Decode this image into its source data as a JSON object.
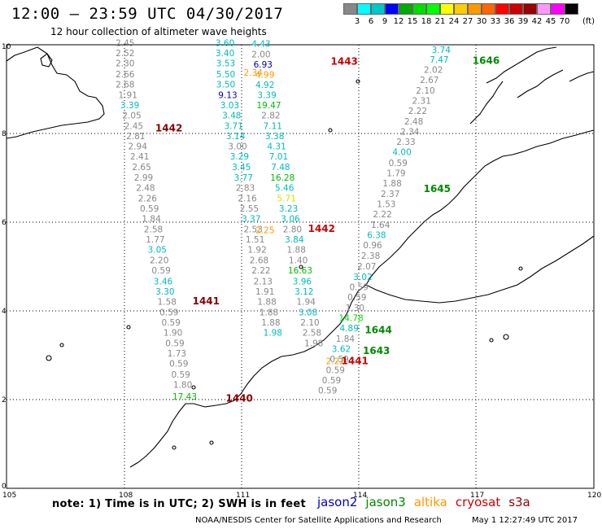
{
  "title": "12:00 — 23:59 UTC 04/30/2017",
  "subtitle": "12 hour collection of altimeter wave heights",
  "colorbar": {
    "unit": "(ft)",
    "labels": [
      "3",
      "6",
      "9",
      "12",
      "15",
      "18",
      "21",
      "24",
      "27",
      "30",
      "33",
      "36",
      "39",
      "42",
      "45",
      "70"
    ],
    "colors": [
      "#888888",
      "#00ffff",
      "#00c8c8",
      "#0000ff",
      "#00aa00",
      "#00dd00",
      "#00ff00",
      "#ffff00",
      "#ffcc00",
      "#ff9900",
      "#ff6600",
      "#ff0000",
      "#cc0000",
      "#990000",
      "#ff99ff",
      "#ff00ff",
      "#000000"
    ]
  },
  "axes": {
    "x_ticks": [
      "105",
      "108",
      "111",
      "114",
      "117",
      "120"
    ],
    "y_ticks": [
      "0",
      "2",
      "4",
      "6",
      "8",
      "10"
    ],
    "lon_range": [
      105,
      120
    ],
    "lat_range": [
      0,
      10
    ]
  },
  "note": "note:  1) Time is in UTC;  2) SWH is in feet",
  "satellites": [
    {
      "name": "jason2",
      "color": "#0000cc"
    },
    {
      "name": "jason3",
      "color": "#008800"
    },
    {
      "name": "altika",
      "color": "#ff9900"
    },
    {
      "name": "cryosat",
      "color": "#cc0000"
    },
    {
      "name": "s3a",
      "color": "#880000"
    }
  ],
  "credit": "NOAA/NESDIS Center for Satellite Applications and Research",
  "timestamp": "May  1 12:27:49 UTC 2017",
  "time_labels": [
    {
      "text": "1443",
      "lon": 113.28,
      "lat": 9.55,
      "color": "#cc0000"
    },
    {
      "text": "1646",
      "lon": 116.9,
      "lat": 9.57,
      "color": "#008800"
    },
    {
      "text": "1442",
      "lon": 108.8,
      "lat": 8.05,
      "color": "#880000"
    },
    {
      "text": "1645",
      "lon": 115.65,
      "lat": 6.68,
      "color": "#008800"
    },
    {
      "text": "1442",
      "lon": 112.7,
      "lat": 5.78,
      "color": "#cc0000"
    },
    {
      "text": "1441",
      "lon": 109.75,
      "lat": 4.15,
      "color": "#880000"
    },
    {
      "text": "1644",
      "lon": 114.15,
      "lat": 3.5,
      "color": "#008800"
    },
    {
      "text": "1643",
      "lon": 114.1,
      "lat": 3.03,
      "color": "#008800"
    },
    {
      "text": "1441",
      "lon": 113.55,
      "lat": 2.8,
      "color": "#cc0000"
    },
    {
      "text": "1440",
      "lon": 110.6,
      "lat": 1.95,
      "color": "#880000"
    }
  ],
  "tracks": [
    {
      "name": "s3a-pass-1442",
      "color": "#888888",
      "points": [
        {
          "lon": 108.03,
          "lat": 9.97,
          "v": "2.45"
        },
        {
          "lon": 108.03,
          "lat": 9.74,
          "v": "2.52"
        },
        {
          "lon": 108.03,
          "lat": 9.51,
          "v": "2.30"
        },
        {
          "lon": 108.03,
          "lat": 9.27,
          "v": "2.66"
        },
        {
          "lon": 108.03,
          "lat": 9.04,
          "v": "2.68"
        },
        {
          "lon": 108.1,
          "lat": 8.8,
          "v": "1.91"
        },
        {
          "lon": 108.15,
          "lat": 8.57,
          "v": "3.39",
          "c": "#00bbbb"
        },
        {
          "lon": 108.2,
          "lat": 8.34,
          "v": "2.05"
        },
        {
          "lon": 108.25,
          "lat": 8.1,
          "v": "2.45"
        },
        {
          "lon": 108.3,
          "lat": 7.87,
          "v": "2.81"
        },
        {
          "lon": 108.35,
          "lat": 7.64,
          "v": "2.94"
        },
        {
          "lon": 108.4,
          "lat": 7.41,
          "v": "2.41"
        },
        {
          "lon": 108.45,
          "lat": 7.17,
          "v": "2.65"
        },
        {
          "lon": 108.5,
          "lat": 6.94,
          "v": "2.99"
        },
        {
          "lon": 108.55,
          "lat": 6.71,
          "v": "2.48"
        },
        {
          "lon": 108.6,
          "lat": 6.47,
          "v": "2.26"
        },
        {
          "lon": 108.65,
          "lat": 6.24,
          "v": "0.59"
        },
        {
          "lon": 108.7,
          "lat": 6.01,
          "v": "1.84"
        },
        {
          "lon": 108.75,
          "lat": 5.77,
          "v": "2.58"
        },
        {
          "lon": 108.8,
          "lat": 5.54,
          "v": "1.77"
        },
        {
          "lon": 108.85,
          "lat": 5.31,
          "v": "3.05",
          "c": "#00bbbb"
        },
        {
          "lon": 108.9,
          "lat": 5.07,
          "v": "2.20"
        },
        {
          "lon": 108.95,
          "lat": 4.84,
          "v": "0.59"
        },
        {
          "lon": 109.0,
          "lat": 4.6,
          "v": "3.46",
          "c": "#00bbbb"
        },
        {
          "lon": 109.05,
          "lat": 4.37,
          "v": "3.30",
          "c": "#00bbbb"
        },
        {
          "lon": 109.1,
          "lat": 4.14,
          "v": "1.58"
        },
        {
          "lon": 109.15,
          "lat": 3.9,
          "v": "0.59"
        },
        {
          "lon": 109.2,
          "lat": 3.67,
          "v": "0.59"
        },
        {
          "lon": 109.25,
          "lat": 3.44,
          "v": "1.90"
        },
        {
          "lon": 109.3,
          "lat": 3.2,
          "v": "0.59"
        },
        {
          "lon": 109.35,
          "lat": 2.97,
          "v": "1.73"
        },
        {
          "lon": 109.4,
          "lat": 2.74,
          "v": "0.59"
        },
        {
          "lon": 109.45,
          "lat": 2.5,
          "v": "0.59"
        },
        {
          "lon": 109.5,
          "lat": 2.27,
          "v": "1.80"
        },
        {
          "lon": 109.55,
          "lat": 2.0,
          "v": "17.43",
          "c": "#00bb00"
        }
      ]
    },
    {
      "name": "jason-pass-a",
      "color": "#00bbbb",
      "points": [
        {
          "lon": 110.58,
          "lat": 9.97,
          "v": "3.60"
        },
        {
          "lon": 110.58,
          "lat": 9.74,
          "v": "3.40"
        },
        {
          "lon": 110.6,
          "lat": 9.51,
          "v": "3.53"
        },
        {
          "lon": 110.6,
          "lat": 9.27,
          "v": "5.50"
        },
        {
          "lon": 110.6,
          "lat": 9.04,
          "v": "3.50"
        },
        {
          "lon": 110.65,
          "lat": 8.8,
          "v": "9.13",
          "c": "#0000aa"
        },
        {
          "lon": 110.7,
          "lat": 8.57,
          "v": "3.03"
        },
        {
          "lon": 110.75,
          "lat": 8.34,
          "v": "3.48"
        },
        {
          "lon": 110.8,
          "lat": 8.1,
          "v": "3.71"
        },
        {
          "lon": 110.85,
          "lat": 7.87,
          "v": "3.14"
        },
        {
          "lon": 110.9,
          "lat": 7.64,
          "v": "3.00",
          "c": "#888888"
        },
        {
          "lon": 110.95,
          "lat": 7.41,
          "v": "3.29"
        },
        {
          "lon": 111.0,
          "lat": 7.17,
          "v": "3.45"
        },
        {
          "lon": 111.05,
          "lat": 6.94,
          "v": "3.77"
        },
        {
          "lon": 111.1,
          "lat": 6.71,
          "v": "2.83",
          "c": "#888888"
        },
        {
          "lon": 111.15,
          "lat": 6.47,
          "v": "2.16",
          "c": "#888888"
        },
        {
          "lon": 111.2,
          "lat": 6.24,
          "v": "2.55",
          "c": "#888888"
        },
        {
          "lon": 111.25,
          "lat": 6.01,
          "v": "3.37"
        },
        {
          "lon": 111.3,
          "lat": 5.77,
          "v": "2.53",
          "c": "#888888"
        },
        {
          "lon": 111.35,
          "lat": 5.54,
          "v": "1.51",
          "c": "#888888"
        },
        {
          "lon": 111.4,
          "lat": 5.31,
          "v": "1.92",
          "c": "#888888"
        },
        {
          "lon": 111.45,
          "lat": 5.07,
          "v": "2.68",
          "c": "#888888"
        },
        {
          "lon": 111.5,
          "lat": 4.84,
          "v": "2.22",
          "c": "#888888"
        },
        {
          "lon": 111.55,
          "lat": 4.6,
          "v": "2.13",
          "c": "#888888"
        },
        {
          "lon": 111.6,
          "lat": 4.37,
          "v": "1.91",
          "c": "#888888"
        },
        {
          "lon": 111.65,
          "lat": 4.14,
          "v": "1.88",
          "c": "#888888"
        },
        {
          "lon": 111.7,
          "lat": 3.9,
          "v": "1.88",
          "c": "#888888"
        },
        {
          "lon": 111.75,
          "lat": 3.67,
          "v": "1.88",
          "c": "#888888"
        },
        {
          "lon": 111.8,
          "lat": 3.44,
          "v": "1.98"
        }
      ]
    },
    {
      "name": "jason-pass-b",
      "color": "#00bb00",
      "points": [
        {
          "lon": 111.5,
          "lat": 9.95,
          "v": "4.43",
          "c": "#00bbbb"
        },
        {
          "lon": 111.5,
          "lat": 9.72,
          "v": "2.00",
          "c": "#888888"
        },
        {
          "lon": 111.55,
          "lat": 9.49,
          "v": "6.93",
          "c": "#0000aa"
        },
        {
          "lon": 111.6,
          "lat": 9.26,
          "v": "4.99",
          "c": "#ff9900"
        },
        {
          "lon": 111.6,
          "lat": 9.03,
          "v": "4.92",
          "c": "#00bbbb"
        },
        {
          "lon": 111.65,
          "lat": 8.8,
          "v": "3.39",
          "c": "#00bbbb"
        },
        {
          "lon": 111.7,
          "lat": 8.57,
          "v": "19.47"
        },
        {
          "lon": 111.75,
          "lat": 8.34,
          "v": "2.82",
          "c": "#888888"
        },
        {
          "lon": 111.8,
          "lat": 8.1,
          "v": "7.11",
          "c": "#00bbbb"
        },
        {
          "lon": 111.85,
          "lat": 7.87,
          "v": "3.38",
          "c": "#00bbbb"
        },
        {
          "lon": 111.9,
          "lat": 7.64,
          "v": "4.31",
          "c": "#00bbbb"
        },
        {
          "lon": 111.95,
          "lat": 7.41,
          "v": "7.01",
          "c": "#00bbbb"
        },
        {
          "lon": 112.0,
          "lat": 7.17,
          "v": "7.48",
          "c": "#00bbbb"
        },
        {
          "lon": 112.05,
          "lat": 6.94,
          "v": "16.28"
        },
        {
          "lon": 112.1,
          "lat": 6.71,
          "v": "5.46",
          "c": "#00bbbb"
        },
        {
          "lon": 112.15,
          "lat": 6.47,
          "v": "5.71",
          "c": "#dddd00"
        },
        {
          "lon": 112.2,
          "lat": 6.24,
          "v": "3.23",
          "c": "#00bbbb"
        },
        {
          "lon": 112.25,
          "lat": 6.01,
          "v": "3.06",
          "c": "#00bbbb"
        },
        {
          "lon": 112.3,
          "lat": 5.77,
          "v": "2.80",
          "c": "#888888"
        },
        {
          "lon": 112.35,
          "lat": 5.54,
          "v": "3.84",
          "c": "#00bbbb"
        },
        {
          "lon": 112.4,
          "lat": 5.31,
          "v": "1.88",
          "c": "#888888"
        },
        {
          "lon": 112.45,
          "lat": 5.07,
          "v": "1.40",
          "c": "#888888"
        },
        {
          "lon": 112.5,
          "lat": 4.84,
          "v": "16.63"
        },
        {
          "lon": 112.55,
          "lat": 4.6,
          "v": "3.96",
          "c": "#00bbbb"
        },
        {
          "lon": 112.6,
          "lat": 4.37,
          "v": "3.12",
          "c": "#00bbbb"
        },
        {
          "lon": 112.65,
          "lat": 4.14,
          "v": "1.94",
          "c": "#888888"
        },
        {
          "lon": 112.7,
          "lat": 3.9,
          "v": "3.08",
          "c": "#00bbbb"
        },
        {
          "lon": 112.75,
          "lat": 3.67,
          "v": "2.10",
          "c": "#888888"
        },
        {
          "lon": 112.8,
          "lat": 3.44,
          "v": "2.58",
          "c": "#888888"
        },
        {
          "lon": 112.85,
          "lat": 3.2,
          "v": "1.98",
          "c": "#888888"
        }
      ]
    },
    {
      "name": "altika-pass",
      "color": "#ff9900",
      "points": [
        {
          "lon": 111.3,
          "lat": 9.3,
          "v": "2.34"
        },
        {
          "lon": 111.6,
          "lat": 5.75,
          "v": "2.25"
        },
        {
          "lon": 113.4,
          "lat": 2.8,
          "v": "2.22"
        }
      ]
    },
    {
      "name": "cryosat-pass-1646",
      "color": "#888888",
      "points": [
        {
          "lon": 116.1,
          "lat": 9.82,
          "v": "3.74",
          "c": "#00bbbb"
        },
        {
          "lon": 116.05,
          "lat": 9.6,
          "v": "7.47",
          "c": "#00bbbb"
        },
        {
          "lon": 115.9,
          "lat": 9.37,
          "v": "2.02"
        },
        {
          "lon": 115.8,
          "lat": 9.14,
          "v": "2.67"
        },
        {
          "lon": 115.7,
          "lat": 8.9,
          "v": "2.10"
        },
        {
          "lon": 115.6,
          "lat": 8.67,
          "v": "2.31"
        },
        {
          "lon": 115.5,
          "lat": 8.44,
          "v": "2.22"
        },
        {
          "lon": 115.4,
          "lat": 8.2,
          "v": "2.48"
        },
        {
          "lon": 115.3,
          "lat": 7.97,
          "v": "2.34"
        },
        {
          "lon": 115.2,
          "lat": 7.74,
          "v": "2.33"
        },
        {
          "lon": 115.1,
          "lat": 7.51,
          "v": "4.00",
          "c": "#00bbbb"
        },
        {
          "lon": 115.0,
          "lat": 7.27,
          "v": "0.59"
        },
        {
          "lon": 114.95,
          "lat": 7.04,
          "v": "1.79"
        },
        {
          "lon": 114.85,
          "lat": 6.81,
          "v": "1.88"
        },
        {
          "lon": 114.8,
          "lat": 6.57,
          "v": "2.37"
        },
        {
          "lon": 114.7,
          "lat": 6.34,
          "v": "1.53"
        },
        {
          "lon": 114.6,
          "lat": 6.11,
          "v": "2.22"
        },
        {
          "lon": 114.55,
          "lat": 5.87,
          "v": "1.64"
        },
        {
          "lon": 114.45,
          "lat": 5.64,
          "v": "6.38",
          "c": "#00bbbb"
        },
        {
          "lon": 114.35,
          "lat": 5.41,
          "v": "0.96"
        },
        {
          "lon": 114.3,
          "lat": 5.17,
          "v": "2.38"
        },
        {
          "lon": 114.2,
          "lat": 4.94,
          "v": "2.07"
        },
        {
          "lon": 114.1,
          "lat": 4.7,
          "v": "3.02",
          "c": "#00bbbb"
        },
        {
          "lon": 114.0,
          "lat": 4.47,
          "v": "0.59"
        },
        {
          "lon": 113.95,
          "lat": 4.24,
          "v": "0.59"
        },
        {
          "lon": 113.9,
          "lat": 4.0,
          "v": "1.30"
        },
        {
          "lon": 113.8,
          "lat": 3.77,
          "v": "14.78",
          "c": "#00dd00"
        },
        {
          "lon": 113.75,
          "lat": 3.54,
          "v": "4.89",
          "c": "#00bbbb"
        },
        {
          "lon": 113.65,
          "lat": 3.3,
          "v": "1.84"
        },
        {
          "lon": 113.55,
          "lat": 3.07,
          "v": "3.62",
          "c": "#00bbbb"
        },
        {
          "lon": 113.5,
          "lat": 2.84,
          "v": "0.59"
        },
        {
          "lon": 113.4,
          "lat": 2.6,
          "v": "0.59"
        },
        {
          "lon": 113.3,
          "lat": 2.37,
          "v": "0.59"
        },
        {
          "lon": 113.2,
          "lat": 2.14,
          "v": "0.59"
        }
      ]
    }
  ]
}
